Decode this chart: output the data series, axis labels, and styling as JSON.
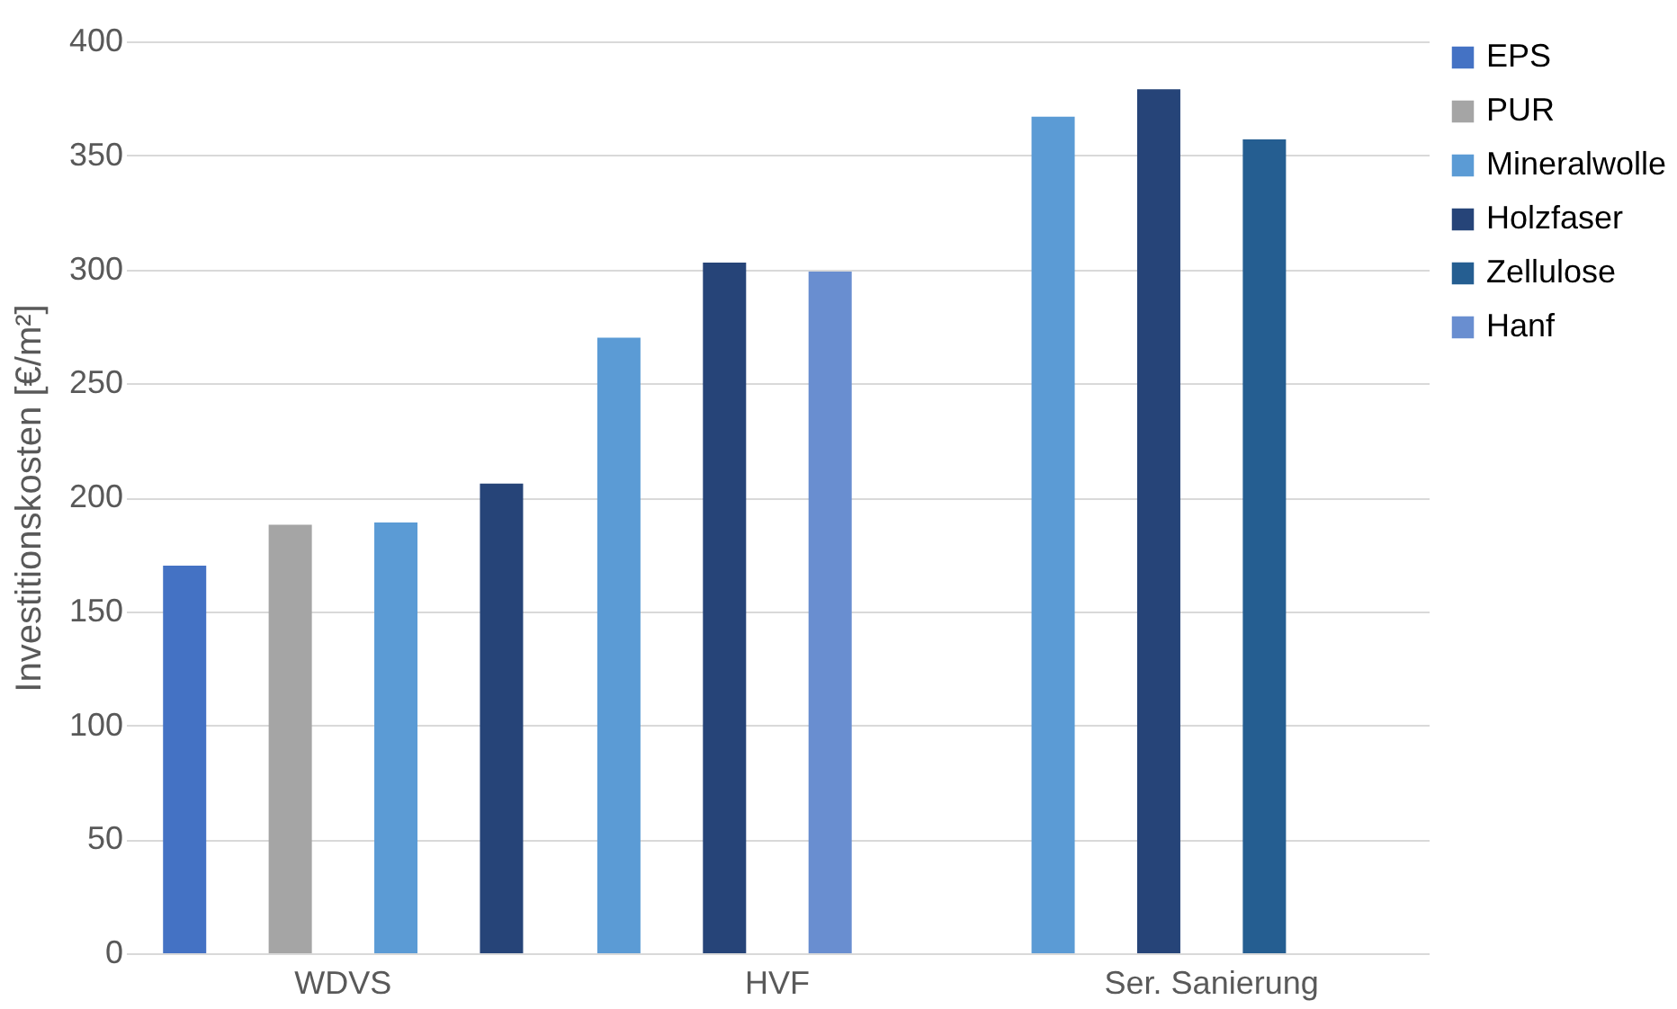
{
  "chart_data": {
    "type": "bar",
    "ylabel": "Investitionskosten [€/m²]",
    "categories": [
      "WDVS",
      "HVF",
      "Ser. Sanierung"
    ],
    "series": [
      {
        "name": "EPS",
        "color": "#4472c4",
        "values": [
          170,
          null,
          null
        ]
      },
      {
        "name": "PUR",
        "color": "#a5a5a5",
        "values": [
          188,
          null,
          null
        ]
      },
      {
        "name": "Mineralwolle",
        "color": "#5b9bd5",
        "values": [
          189,
          270,
          367
        ]
      },
      {
        "name": "Holzfaser",
        "color": "#264478",
        "values": [
          206,
          303,
          379
        ]
      },
      {
        "name": "Zellulose",
        "color": "#255e91",
        "values": [
          null,
          null,
          357
        ]
      },
      {
        "name": "Hanf",
        "color": "#698ed0",
        "values": [
          null,
          299,
          null
        ]
      }
    ],
    "ylim": [
      0,
      400
    ],
    "yticks": [
      0,
      50,
      100,
      150,
      200,
      250,
      300,
      350,
      400
    ],
    "grid": "y",
    "legend": "right"
  }
}
